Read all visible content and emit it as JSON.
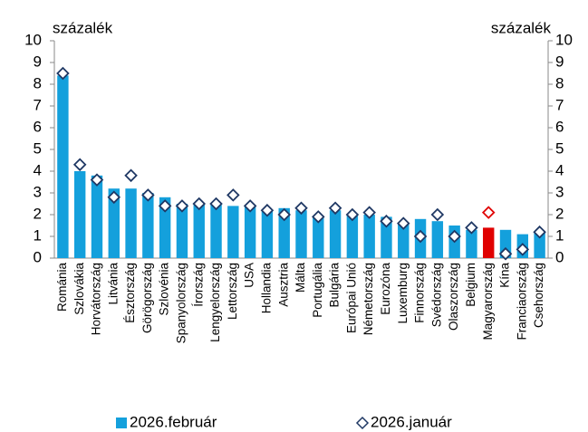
{
  "chart_data": {
    "type": "bar_marker",
    "y_label": "százalék",
    "y2_label": "százalék",
    "categories": [
      "Románia",
      "Szlovákia",
      "Horvátország",
      "Litvánia",
      "Észtország",
      "Görögország",
      "Szlovénia",
      "Spanyolország",
      "Írország",
      "Lengyelország",
      "Lettország",
      "USA",
      "Hollandia",
      "Ausztria",
      "Málta",
      "Portugália",
      "Bulgária",
      "Európai Unió",
      "Németország",
      "Eurozóna",
      "Luxemburg",
      "Finnország",
      "Svédország",
      "Olaszország",
      "Belgium",
      "Magyarország",
      "Kína",
      "Franciaország",
      "Csehország"
    ],
    "series": [
      {
        "name": "2026.február",
        "kind": "bar",
        "color": "#14a0dc",
        "colors": [
          "#14a0dc",
          "#14a0dc",
          "#14a0dc",
          "#14a0dc",
          "#14a0dc",
          "#14a0dc",
          "#14a0dc",
          "#14a0dc",
          "#14a0dc",
          "#14a0dc",
          "#14a0dc",
          "#14a0dc",
          "#14a0dc",
          "#14a0dc",
          "#14a0dc",
          "#14a0dc",
          "#14a0dc",
          "#14a0dc",
          "#14a0dc",
          "#14a0dc",
          "#14a0dc",
          "#14a0dc",
          "#14a0dc",
          "#14a0dc",
          "#14a0dc",
          "#e00000",
          "#14a0dc",
          "#14a0dc",
          "#14a0dc"
        ],
        "values": [
          8.4,
          4.0,
          3.8,
          3.2,
          3.2,
          3.0,
          2.8,
          2.5,
          2.5,
          2.5,
          2.4,
          2.4,
          2.2,
          2.3,
          2.2,
          1.9,
          2.2,
          2.0,
          2.0,
          1.9,
          1.6,
          1.8,
          1.7,
          1.5,
          1.3,
          1.4,
          1.3,
          1.1,
          1.2
        ]
      },
      {
        "name": "2026.január",
        "kind": "marker",
        "axis": "y2",
        "color": "#1f3864",
        "colors": [
          "#1f3864",
          "#1f3864",
          "#1f3864",
          "#1f3864",
          "#1f3864",
          "#1f3864",
          "#1f3864",
          "#1f3864",
          "#1f3864",
          "#1f3864",
          "#1f3864",
          "#1f3864",
          "#1f3864",
          "#1f3864",
          "#1f3864",
          "#1f3864",
          "#1f3864",
          "#1f3864",
          "#1f3864",
          "#1f3864",
          "#1f3864",
          "#1f3864",
          "#1f3864",
          "#1f3864",
          "#1f3864",
          "#e00000",
          "#1f3864",
          "#1f3864",
          "#1f3864"
        ],
        "values": [
          8.5,
          4.3,
          3.6,
          2.8,
          3.8,
          2.9,
          2.4,
          2.4,
          2.5,
          2.5,
          2.9,
          2.4,
          2.2,
          2.0,
          2.3,
          1.9,
          2.3,
          2.0,
          2.1,
          1.7,
          1.6,
          1.0,
          2.0,
          1.0,
          1.4,
          2.1,
          0.2,
          0.4,
          1.2
        ]
      }
    ],
    "ylim": [
      0,
      10
    ],
    "yticks": [
      0,
      1,
      2,
      3,
      4,
      5,
      6,
      7,
      8,
      9,
      10
    ],
    "y2lim": [
      0,
      10
    ],
    "y2ticks": [
      0,
      1,
      2,
      3,
      4,
      5,
      6,
      7,
      8,
      9,
      10
    ],
    "grid": false,
    "legend": "bottom"
  }
}
